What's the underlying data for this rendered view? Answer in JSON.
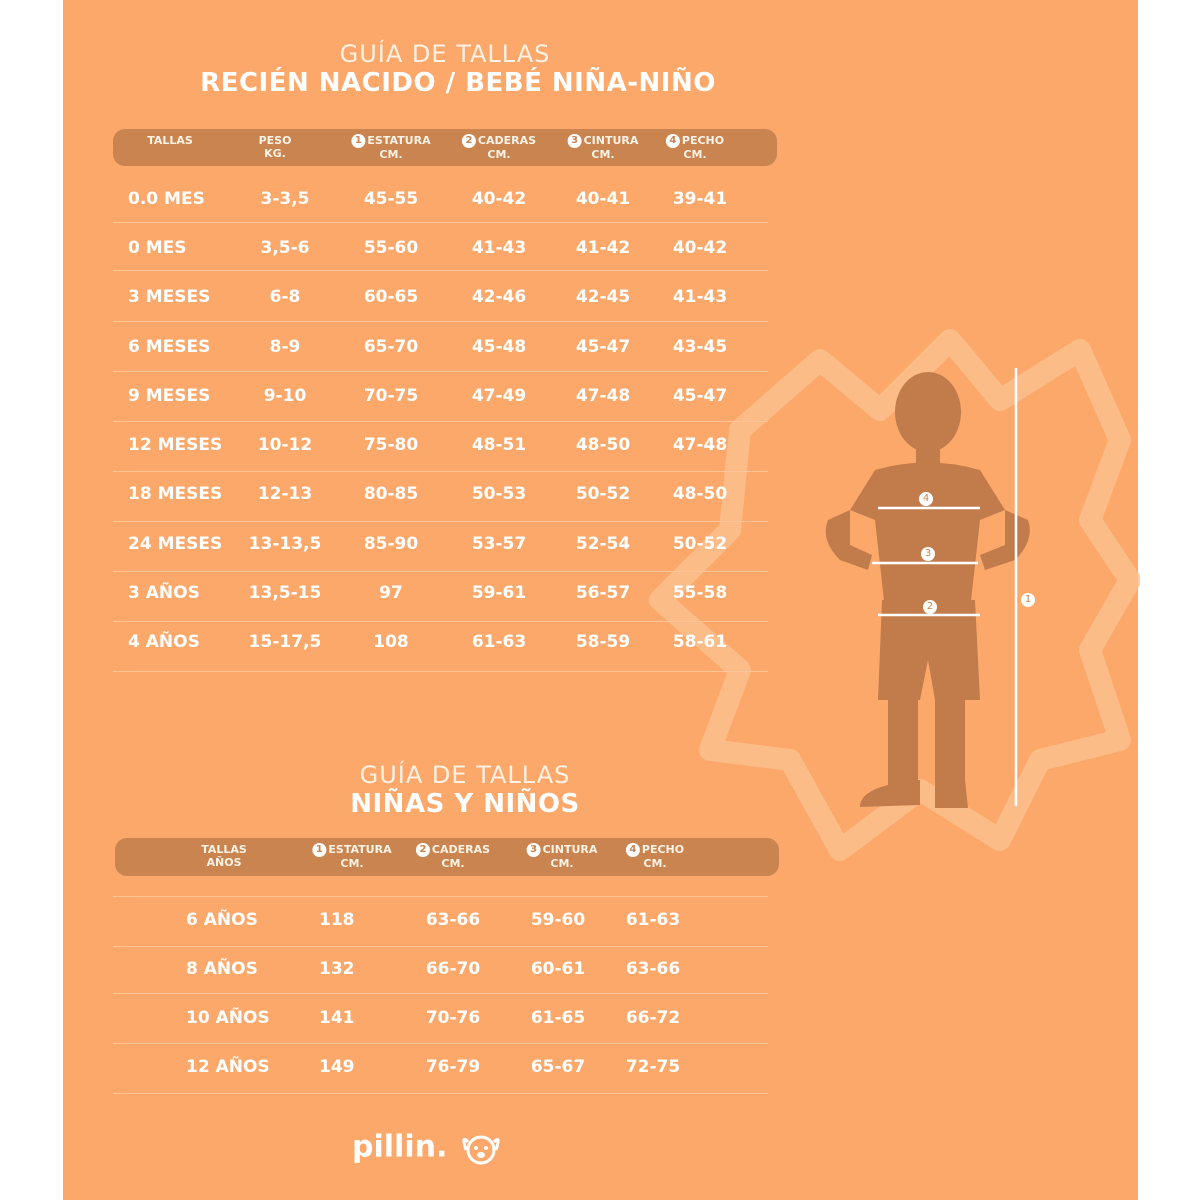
{
  "colors": {
    "background": "#FBA86A",
    "header_bar": "#C9844F",
    "silhouette": "#C27C4C",
    "text": "#FFFFFF"
  },
  "baby": {
    "title_light": "GUÍA DE TALLAS",
    "title_bold": "RECIÉN NACIDO / BEBÉ NIÑA-NIÑO",
    "headers": [
      {
        "num": "",
        "l1": "TALLAS",
        "l2": ""
      },
      {
        "num": "",
        "l1": "PESO",
        "l2": "KG."
      },
      {
        "num": "1",
        "l1": "ESTATURA",
        "l2": "CM."
      },
      {
        "num": "2",
        "l1": "CADERAS",
        "l2": "CM."
      },
      {
        "num": "3",
        "l1": "CINTURA",
        "l2": "CM."
      },
      {
        "num": "4",
        "l1": "PECHO",
        "l2": "CM."
      }
    ],
    "rows": [
      [
        "0.0 MES",
        "3-3,5",
        "45-55",
        "40-42",
        "40-41",
        "39-41"
      ],
      [
        "0 MES",
        "3,5-6",
        "55-60",
        "41-43",
        "41-42",
        "40-42"
      ],
      [
        "3 MESES",
        "6-8",
        "60-65",
        "42-46",
        "42-45",
        "41-43"
      ],
      [
        "6 MESES",
        "8-9",
        "65-70",
        "45-48",
        "45-47",
        "43-45"
      ],
      [
        "9 MESES",
        "9-10",
        "70-75",
        "47-49",
        "47-48",
        "45-47"
      ],
      [
        "12 MESES",
        "10-12",
        "75-80",
        "48-51",
        "48-50",
        "47-48"
      ],
      [
        "18 MESES",
        "12-13",
        "80-85",
        "50-53",
        "50-52",
        "48-50"
      ],
      [
        "24 MESES",
        "13-13,5",
        "85-90",
        "53-57",
        "52-54",
        "50-52"
      ],
      [
        "3 AÑOS",
        "13,5-15",
        "97",
        "59-61",
        "56-57",
        "55-58"
      ],
      [
        "4 AÑOS",
        "15-17,5",
        "108",
        "61-63",
        "58-59",
        "58-61"
      ]
    ]
  },
  "kids": {
    "title_light": "GUÍA DE TALLAS",
    "title_bold": "NIÑAS Y NIÑOS",
    "headers": [
      {
        "num": "",
        "l1": "TALLAS",
        "l2": "AÑOS"
      },
      {
        "num": "1",
        "l1": "ESTATURA",
        "l2": "CM."
      },
      {
        "num": "2",
        "l1": "CADERAS",
        "l2": "CM."
      },
      {
        "num": "3",
        "l1": "CINTURA",
        "l2": "CM."
      },
      {
        "num": "4",
        "l1": "PECHO",
        "l2": "CM."
      }
    ],
    "rows": [
      [
        "6 AÑOS",
        "118",
        "63-66",
        "59-60",
        "61-63"
      ],
      [
        "8 AÑOS",
        "132",
        "66-70",
        "60-61",
        "63-66"
      ],
      [
        "10 AÑOS",
        "141",
        "70-76",
        "61-65",
        "66-72"
      ],
      [
        "12 AÑOS",
        "149",
        "76-79",
        "65-67",
        "72-75"
      ]
    ]
  },
  "figure": {
    "markers": [
      "1",
      "2",
      "3",
      "4"
    ]
  },
  "logo": {
    "text": "pillin."
  }
}
